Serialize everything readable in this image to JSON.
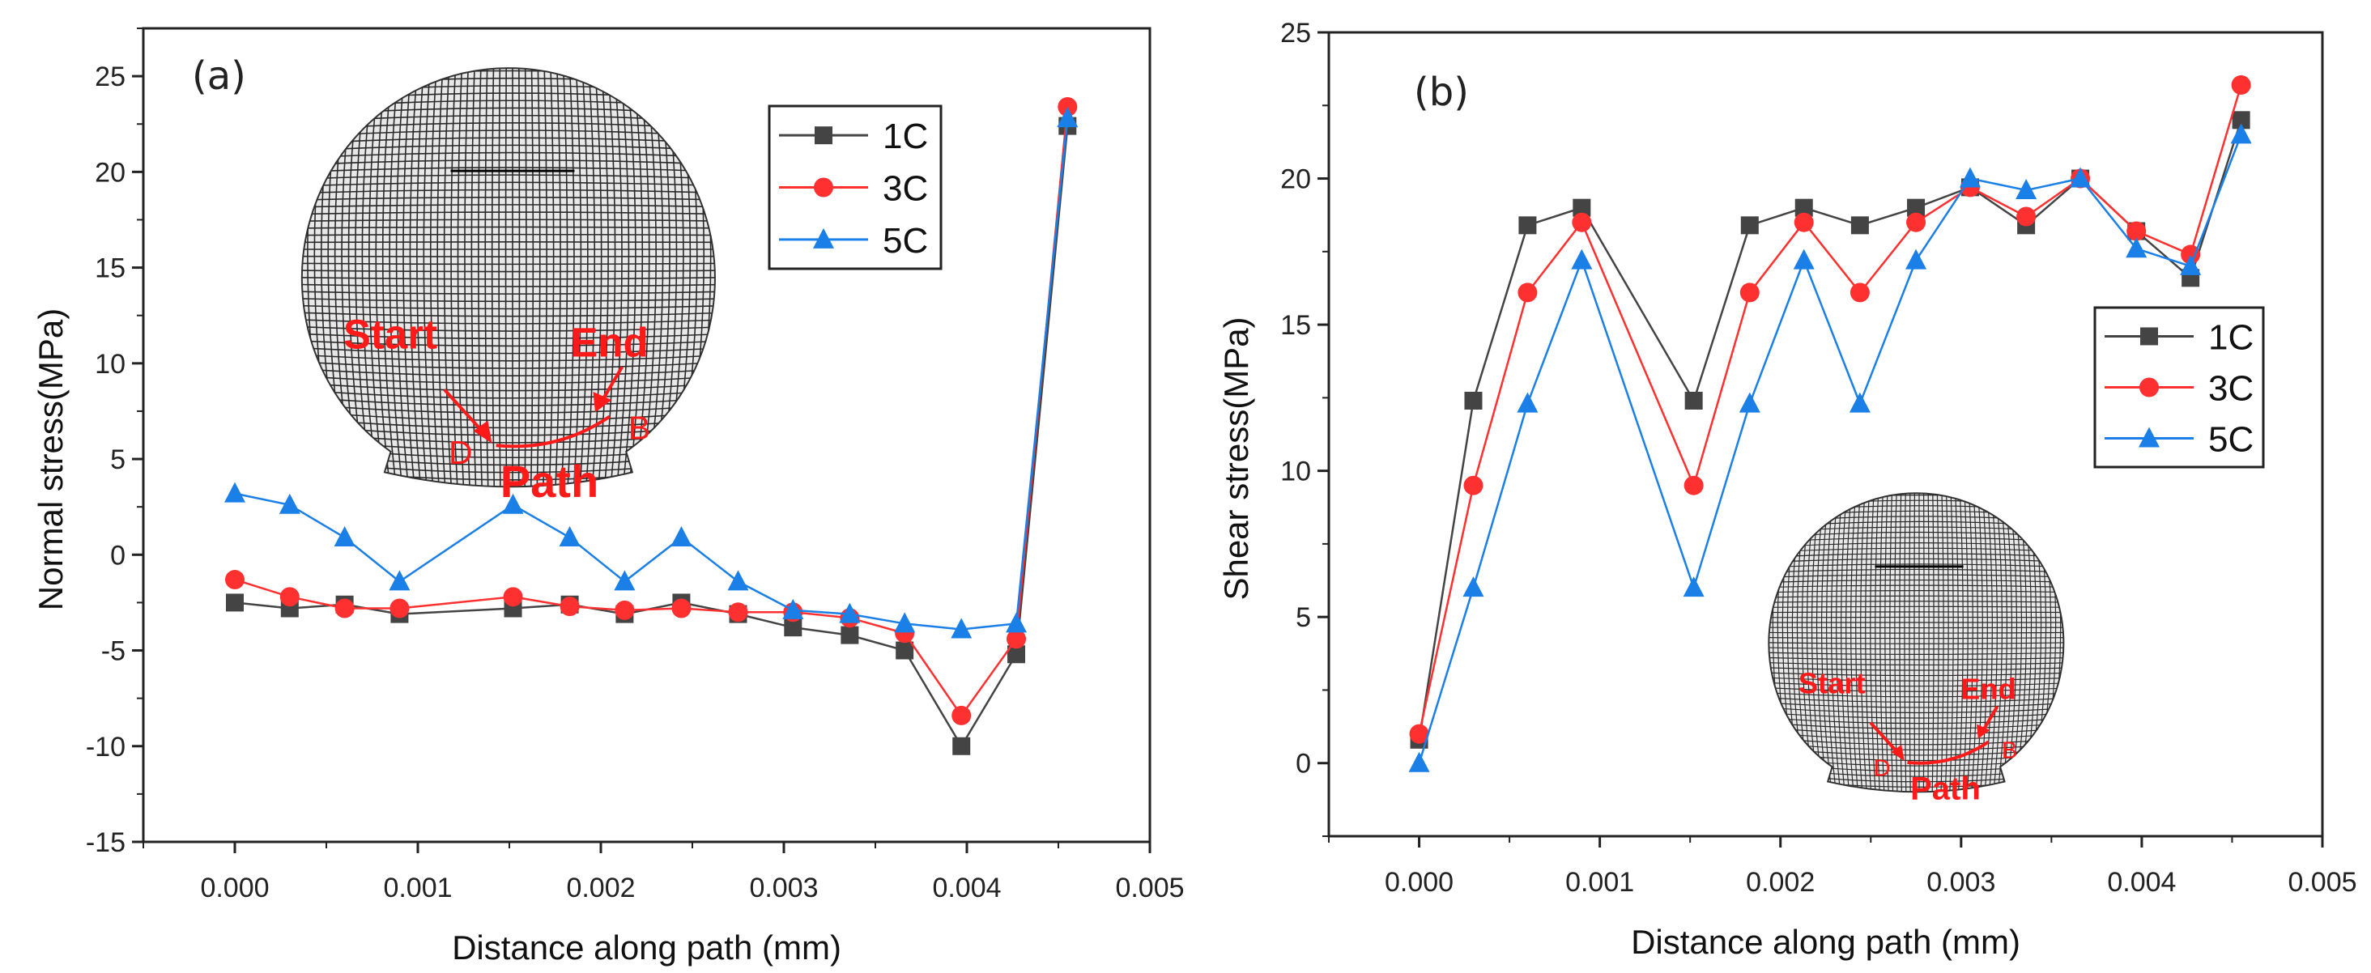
{
  "chart_data": [
    {
      "type": "line",
      "panel_label": "(a)",
      "title": "",
      "xlabel": "Distance along path (mm)",
      "ylabel": "Normal stress(MPa)",
      "xlim": [
        -0.0005,
        0.005
      ],
      "ylim": [
        -15,
        27.5
      ],
      "xticks": [
        "0.000",
        "0.001",
        "0.002",
        "0.003",
        "0.004",
        "0.005"
      ],
      "yticks": [
        "-15",
        "-10",
        "-5",
        "0",
        "5",
        "10",
        "15",
        "20",
        "25"
      ],
      "legend_position": "top-right",
      "x": [
        0,
        0.0003,
        0.0006,
        0.0009,
        0.00152,
        0.00183,
        0.00213,
        0.00244,
        0.00275,
        0.00305,
        0.00336,
        0.00366,
        0.00397,
        0.00427,
        0.00455
      ],
      "series": [
        {
          "name": "1C",
          "color": "#444444",
          "marker": "square",
          "values": [
            -2.5,
            -2.8,
            -2.6,
            -3.1,
            -2.8,
            -2.6,
            -3.1,
            -2.5,
            -3.1,
            -3.8,
            -4.2,
            -5.0,
            -10.0,
            -5.2,
            22.4
          ]
        },
        {
          "name": "3C",
          "color": "#ff3030",
          "marker": "circle",
          "values": [
            -1.3,
            -2.2,
            -2.8,
            -2.8,
            -2.2,
            -2.7,
            -2.9,
            -2.8,
            -3.0,
            -3.0,
            -3.3,
            -4.1,
            -8.4,
            -4.4,
            23.4
          ]
        },
        {
          "name": "5C",
          "color": "#1a7fe6",
          "marker": "triangle",
          "values": [
            3.2,
            2.6,
            0.9,
            -1.4,
            2.6,
            0.9,
            -1.4,
            0.9,
            -1.4,
            -2.9,
            -3.1,
            -3.6,
            -3.9,
            -3.6,
            22.8
          ]
        }
      ],
      "inset": {
        "start": "Start",
        "end": "End",
        "d": "D",
        "b": "B",
        "path": "Path"
      }
    },
    {
      "type": "line",
      "panel_label": "(b)",
      "title": "",
      "xlabel": "Distance along path (mm)",
      "ylabel": "Shear stress(MPa)",
      "xlim": [
        -0.0005,
        0.005
      ],
      "ylim": [
        -2.5,
        25
      ],
      "xticks": [
        "0.000",
        "0.001",
        "0.002",
        "0.003",
        "0.004",
        "0.005"
      ],
      "yticks": [
        "0",
        "5",
        "10",
        "15",
        "20",
        "25"
      ],
      "legend_position": "center-right",
      "x": [
        0,
        0.0003,
        0.0006,
        0.0009,
        0.00152,
        0.00183,
        0.00213,
        0.00244,
        0.00275,
        0.00305,
        0.00336,
        0.00366,
        0.00397,
        0.00427,
        0.00455
      ],
      "series": [
        {
          "name": "1C",
          "color": "#444444",
          "marker": "square",
          "values": [
            0.8,
            12.4,
            18.4,
            19.0,
            12.4,
            18.4,
            19.0,
            18.4,
            19.0,
            19.7,
            18.4,
            20.0,
            18.2,
            16.6,
            22.0
          ]
        },
        {
          "name": "3C",
          "color": "#ff3030",
          "marker": "circle",
          "values": [
            1.0,
            9.5,
            16.1,
            18.5,
            9.5,
            16.1,
            18.5,
            16.1,
            18.5,
            19.7,
            18.7,
            20.0,
            18.2,
            17.4,
            23.2
          ]
        },
        {
          "name": "5C",
          "color": "#1a7fe6",
          "marker": "triangle",
          "values": [
            0.0,
            6.0,
            12.3,
            17.2,
            6.0,
            12.3,
            17.2,
            12.3,
            17.2,
            20.0,
            19.6,
            20.0,
            17.6,
            17.0,
            21.5
          ]
        }
      ],
      "inset": {
        "start": "Start",
        "end": "End",
        "d": "D",
        "b": "B",
        "path": "Path"
      }
    }
  ]
}
